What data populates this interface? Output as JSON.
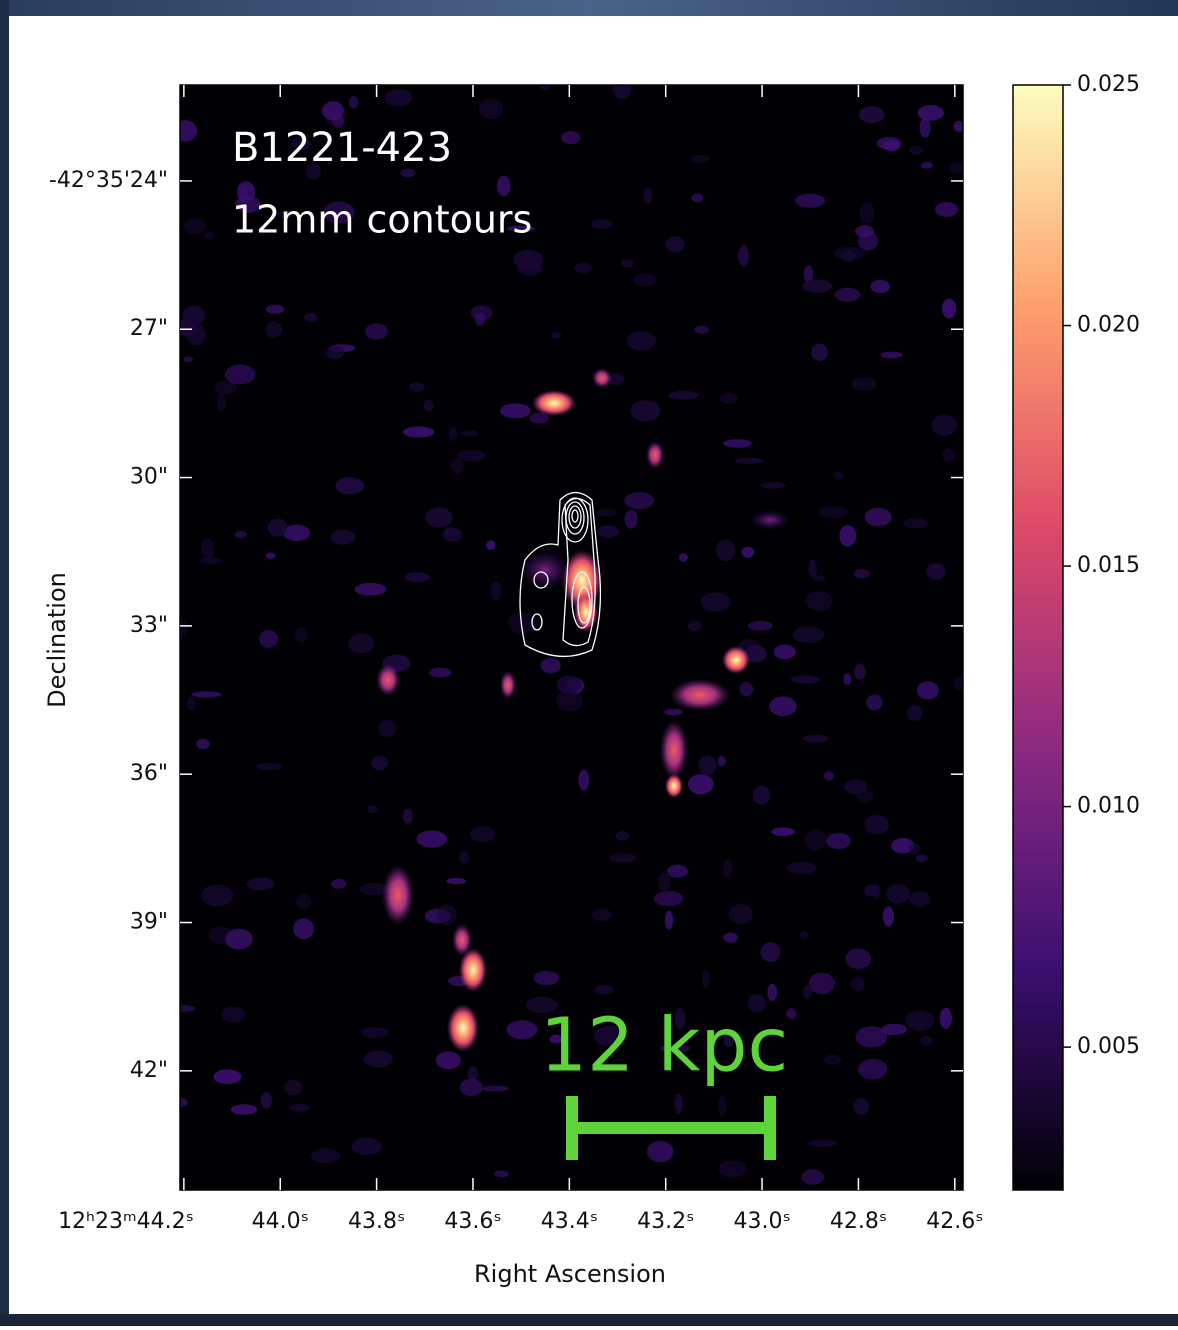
{
  "chart_data": {
    "type": "image",
    "annotations": [
      "B1221-423",
      "12mm contours"
    ],
    "scale_bar": "12 kpc",
    "xlabel": "Right Ascension",
    "ylabel": "Declination",
    "xlim": [
      44.208,
      42.583
    ],
    "xticks": [
      {
        "value": 44.2,
        "label": "12ʰ23ᵐ44.2ˢ"
      },
      {
        "value": 44.0,
        "label": "44.0ˢ"
      },
      {
        "value": 43.8,
        "label": "43.8ˢ"
      },
      {
        "value": 43.6,
        "label": "43.6ˢ"
      },
      {
        "value": 43.4,
        "label": "43.4ˢ"
      },
      {
        "value": 43.2,
        "label": "43.2ˢ"
      },
      {
        "value": 43.0,
        "label": "43.0ˢ"
      },
      {
        "value": 42.8,
        "label": "42.8ˢ"
      },
      {
        "value": 42.6,
        "label": "42.6ˢ"
      }
    ],
    "ylim": [
      22.06,
      44.41
    ],
    "yticks": [
      {
        "value": 24,
        "label": "-42°35'24\""
      },
      {
        "value": 27,
        "label": "27\""
      },
      {
        "value": 30,
        "label": "30\""
      },
      {
        "value": 33,
        "label": "33\""
      },
      {
        "value": 36,
        "label": "36\""
      },
      {
        "value": 39,
        "label": "39\""
      },
      {
        "value": 42,
        "label": "42\""
      }
    ],
    "colorbar_lim": [
      0.00203,
      0.025
    ],
    "colorbar_ticks": [
      0.025,
      {
        "value": 0.02,
        "label": "0.020"
      },
      0.015,
      {
        "value": 0.01,
        "label": "0.010"
      },
      0.005
    ],
    "colormap": [
      "#000004",
      "#3b0f70",
      "#8c2981",
      "#de4968",
      "#fe9f6d",
      "#fcfdbf"
    ]
  }
}
